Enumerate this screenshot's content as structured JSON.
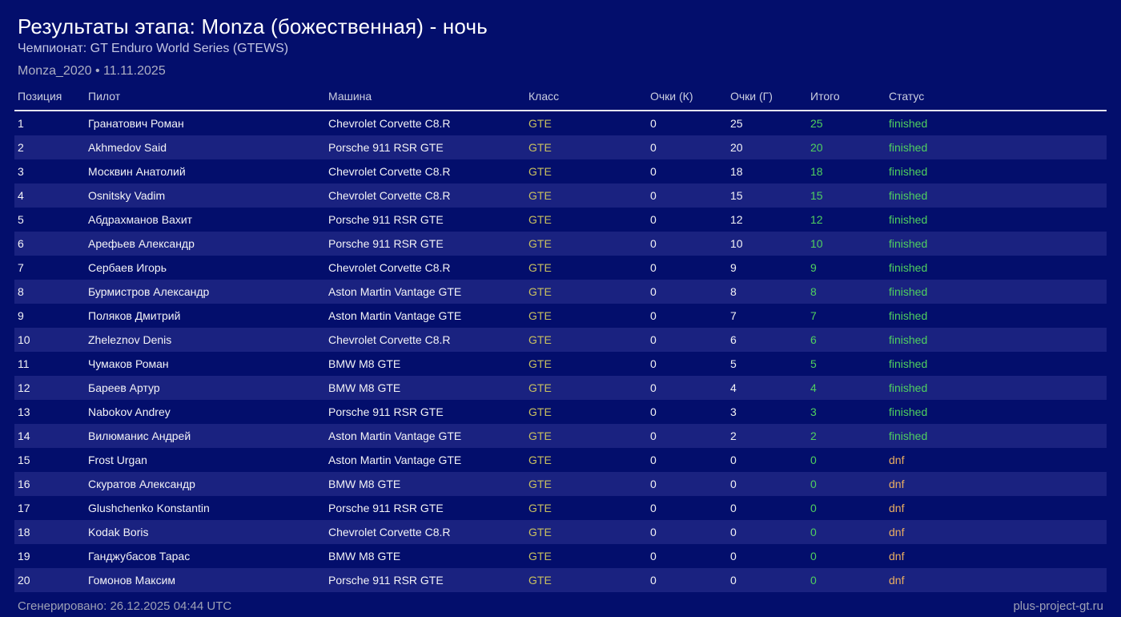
{
  "page": {
    "title": "Результаты этапа: Monza (божественная) - ночь",
    "subtitle": "Чемпионат: GT Enduro World Series (GTEWS)",
    "meta": "Monza_2020 • 11.11.2025",
    "footer_left": "Сгенерировано: 26.12.2025 04:44 UTC",
    "footer_right": "plus-project-gt.ru"
  },
  "colors": {
    "background": "#030e6c",
    "row_alternate": "#1a2280",
    "class_gte": "#c9c05f",
    "status_finished": "#4fd05f",
    "status_dnf": "#e9ad61",
    "total_green": "#4fd05f"
  },
  "table": {
    "columns": {
      "position": "Позиция",
      "pilot": "Пилот",
      "car": "Машина",
      "class": "Класс",
      "points_k": "Очки (К)",
      "points_g": "Очки (Г)",
      "total": "Итого",
      "status": "Статус"
    },
    "rows": [
      {
        "position": "1",
        "pilot": "Гранатович Роман",
        "car": "Chevrolet Corvette C8.R",
        "class": "GTE",
        "points_k": "0",
        "points_g": "25",
        "total": "25",
        "status": "finished"
      },
      {
        "position": "2",
        "pilot": "Akhmedov Said",
        "car": "Porsche 911 RSR GTE",
        "class": "GTE",
        "points_k": "0",
        "points_g": "20",
        "total": "20",
        "status": "finished"
      },
      {
        "position": "3",
        "pilot": "Москвин Анатолий",
        "car": "Chevrolet Corvette C8.R",
        "class": "GTE",
        "points_k": "0",
        "points_g": "18",
        "total": "18",
        "status": "finished"
      },
      {
        "position": "4",
        "pilot": "Osnitsky Vadim",
        "car": "Chevrolet Corvette C8.R",
        "class": "GTE",
        "points_k": "0",
        "points_g": "15",
        "total": "15",
        "status": "finished"
      },
      {
        "position": "5",
        "pilot": "Абдрахманов Вахит",
        "car": "Porsche 911 RSR GTE",
        "class": "GTE",
        "points_k": "0",
        "points_g": "12",
        "total": "12",
        "status": "finished"
      },
      {
        "position": "6",
        "pilot": "Арефьев Александр",
        "car": "Porsche 911 RSR GTE",
        "class": "GTE",
        "points_k": "0",
        "points_g": "10",
        "total": "10",
        "status": "finished"
      },
      {
        "position": "7",
        "pilot": "Сербаев Игорь",
        "car": "Chevrolet Corvette C8.R",
        "class": "GTE",
        "points_k": "0",
        "points_g": "9",
        "total": "9",
        "status": "finished"
      },
      {
        "position": "8",
        "pilot": "Бурмистров Александр",
        "car": "Aston Martin Vantage GTE",
        "class": "GTE",
        "points_k": "0",
        "points_g": "8",
        "total": "8",
        "status": "finished"
      },
      {
        "position": "9",
        "pilot": "Поляков Дмитрий",
        "car": "Aston Martin Vantage GTE",
        "class": "GTE",
        "points_k": "0",
        "points_g": "7",
        "total": "7",
        "status": "finished"
      },
      {
        "position": "10",
        "pilot": "Zheleznov Denis",
        "car": "Chevrolet Corvette C8.R",
        "class": "GTE",
        "points_k": "0",
        "points_g": "6",
        "total": "6",
        "status": "finished"
      },
      {
        "position": "11",
        "pilot": "Чумаков Роман",
        "car": "BMW M8 GTE",
        "class": "GTE",
        "points_k": "0",
        "points_g": "5",
        "total": "5",
        "status": "finished"
      },
      {
        "position": "12",
        "pilot": "Бареев Артур",
        "car": "BMW M8 GTE",
        "class": "GTE",
        "points_k": "0",
        "points_g": "4",
        "total": "4",
        "status": "finished"
      },
      {
        "position": "13",
        "pilot": "Nabokov Andrey",
        "car": "Porsche 911 RSR GTE",
        "class": "GTE",
        "points_k": "0",
        "points_g": "3",
        "total": "3",
        "status": "finished"
      },
      {
        "position": "14",
        "pilot": "Вилюманис Андрей",
        "car": "Aston Martin Vantage GTE",
        "class": "GTE",
        "points_k": "0",
        "points_g": "2",
        "total": "2",
        "status": "finished"
      },
      {
        "position": "15",
        "pilot": "Frost Urgan",
        "car": "Aston Martin Vantage GTE",
        "class": "GTE",
        "points_k": "0",
        "points_g": "0",
        "total": "0",
        "status": "dnf"
      },
      {
        "position": "16",
        "pilot": "Скуратов Александр",
        "car": "BMW M8 GTE",
        "class": "GTE",
        "points_k": "0",
        "points_g": "0",
        "total": "0",
        "status": "dnf"
      },
      {
        "position": "17",
        "pilot": "Glushchenko Konstantin",
        "car": "Porsche 911 RSR GTE",
        "class": "GTE",
        "points_k": "0",
        "points_g": "0",
        "total": "0",
        "status": "dnf"
      },
      {
        "position": "18",
        "pilot": "Kodak Boris",
        "car": "Chevrolet Corvette C8.R",
        "class": "GTE",
        "points_k": "0",
        "points_g": "0",
        "total": "0",
        "status": "dnf"
      },
      {
        "position": "19",
        "pilot": "Ганджубасов Тарас",
        "car": "BMW M8 GTE",
        "class": "GTE",
        "points_k": "0",
        "points_g": "0",
        "total": "0",
        "status": "dnf"
      },
      {
        "position": "20",
        "pilot": "Гомонов Максим",
        "car": "Porsche 911 RSR GTE",
        "class": "GTE",
        "points_k": "0",
        "points_g": "0",
        "total": "0",
        "status": "dnf"
      }
    ]
  }
}
